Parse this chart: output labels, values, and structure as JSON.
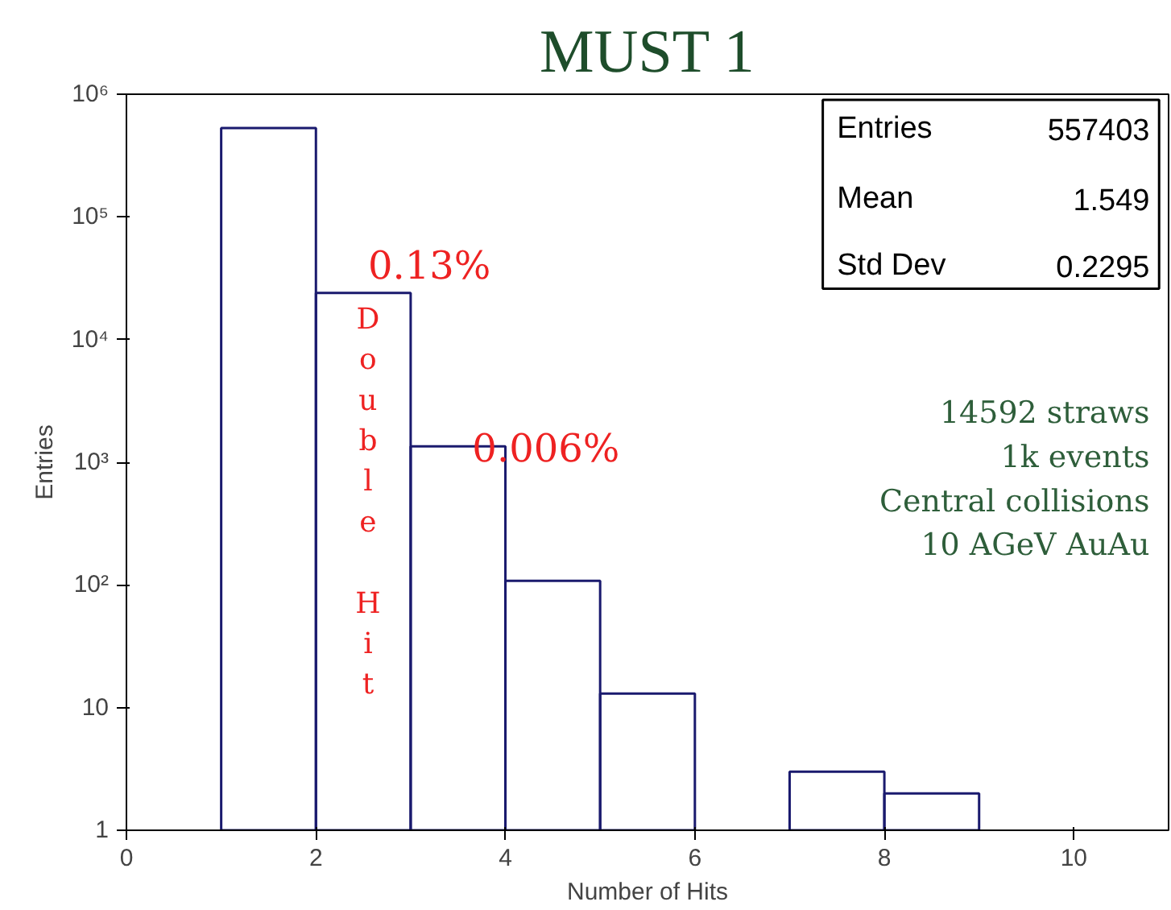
{
  "chart_data": {
    "type": "histogram",
    "title": "MUST 1",
    "xlabel": "Number of Hits",
    "ylabel": "Entries",
    "bins": [
      0,
      1,
      2,
      3,
      4,
      5,
      6,
      7,
      8,
      9,
      10,
      11
    ],
    "values": [
      null,
      530000,
      24000,
      1350,
      108,
      13,
      null,
      3,
      2,
      null,
      null
    ],
    "color": "#1a1a6e",
    "log": "y",
    "xlim": [
      0,
      11
    ],
    "ylim": [
      1,
      1000000
    ],
    "xticks": [
      0,
      2,
      4,
      6,
      8,
      10
    ],
    "yticks": [
      1,
      10,
      {
        "value": 100,
        "label": "10²"
      },
      {
        "value": 1000,
        "label": "10³"
      },
      {
        "value": 10000,
        "label": "10⁴"
      },
      {
        "value": 100000,
        "label": "10⁵"
      },
      {
        "value": 1000000,
        "label": "10⁶"
      }
    ],
    "grid": false,
    "annotations": [
      "Entries",
      "557403",
      "Mean",
      "1.549",
      "Std Dev",
      "0.2295",
      "0.13%",
      "0.006%",
      "Double Hit",
      "14592 straws",
      "1k events",
      "Central collisions",
      "10 AGeV AuAu"
    ]
  }
}
